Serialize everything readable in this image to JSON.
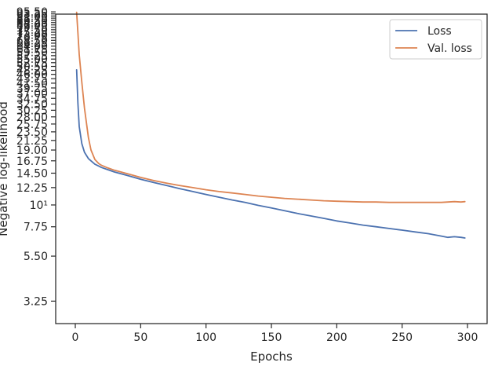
{
  "chart_data": {
    "type": "line",
    "xlabel": "Epochs",
    "ylabel": "Negative log-likelihood",
    "yscale": "log",
    "xlim": [
      -15,
      315
    ],
    "ylim": [
      2.5,
      93
    ],
    "grid": false,
    "legend_position": "top-right",
    "x_ticks": [
      0,
      50,
      100,
      150,
      200,
      250,
      300
    ],
    "y_tick_labels": [
      {
        "value": 3.25,
        "label": "3.25"
      },
      {
        "value": 5.5,
        "label": "5.50"
      },
      {
        "value": 7.75,
        "label": "7.75"
      },
      {
        "value": 10,
        "label": "10¹"
      },
      {
        "value": 12.25,
        "label": "12.25"
      },
      {
        "value": 14.5,
        "label": "14.50"
      },
      {
        "value": 16.75,
        "label": "16.75"
      },
      {
        "value": 19.0,
        "label": "19.00"
      },
      {
        "value": 21.25,
        "label": "21.25"
      },
      {
        "value": 23.5,
        "label": "23.50"
      },
      {
        "value": 25.75,
        "label": "25.75"
      },
      {
        "value": 28.0,
        "label": "28.00"
      },
      {
        "value": 30.25,
        "label": "30.25"
      },
      {
        "value": 32.5,
        "label": "32.50"
      },
      {
        "value": 34.75,
        "label": "34.75"
      },
      {
        "value": 37.0,
        "label": "37.00"
      },
      {
        "value": 39.25,
        "label": "39.25"
      },
      {
        "value": 41.5,
        "label": "41.50"
      },
      {
        "value": 43.75,
        "label": "43.75"
      },
      {
        "value": 46.0,
        "label": "46.00"
      },
      {
        "value": 48.25,
        "label": "48.25"
      },
      {
        "value": 50.5,
        "label": "50.50"
      },
      {
        "value": 52.75,
        "label": "52.75"
      },
      {
        "value": 55.0,
        "label": "55.00"
      },
      {
        "value": 57.25,
        "label": "57.25"
      },
      {
        "value": 59.5,
        "label": "59.50"
      },
      {
        "value": 61.75,
        "label": "61.75"
      },
      {
        "value": 64.0,
        "label": "64.00"
      },
      {
        "value": 66.25,
        "label": "66.25"
      },
      {
        "value": 68.5,
        "label": "68.50"
      },
      {
        "value": 70.75,
        "label": "70.75"
      },
      {
        "value": 73.0,
        "label": "73.00"
      },
      {
        "value": 75.25,
        "label": "75.25"
      },
      {
        "value": 77.5,
        "label": "77.50"
      },
      {
        "value": 79.75,
        "label": "79.75"
      },
      {
        "value": 82.0,
        "label": "82.00"
      },
      {
        "value": 84.25,
        "label": "84.25"
      },
      {
        "value": 86.5,
        "label": "86.50"
      },
      {
        "value": 88.75,
        "label": "88.75"
      },
      {
        "value": 91.0,
        "label": "91.00"
      },
      {
        "value": 93.25,
        "label": "93.25"
      },
      {
        "value": 95.5,
        "label": "95.50"
      }
    ],
    "series": [
      {
        "name": "Loss",
        "color": "#4c72b0",
        "x": [
          1,
          2,
          3,
          5,
          7,
          10,
          15,
          20,
          25,
          30,
          40,
          50,
          60,
          70,
          80,
          90,
          100,
          110,
          120,
          130,
          140,
          150,
          160,
          170,
          180,
          190,
          200,
          210,
          220,
          230,
          240,
          250,
          260,
          270,
          280,
          285,
          290,
          295,
          298
        ],
        "y": [
          48.5,
          33,
          25,
          20.5,
          18.5,
          17.2,
          16.1,
          15.5,
          15.1,
          14.7,
          14.1,
          13.5,
          13.0,
          12.55,
          12.1,
          11.7,
          11.3,
          10.95,
          10.6,
          10.3,
          9.95,
          9.65,
          9.35,
          9.05,
          8.8,
          8.55,
          8.3,
          8.1,
          7.9,
          7.75,
          7.6,
          7.45,
          7.3,
          7.15,
          6.95,
          6.85,
          6.9,
          6.85,
          6.8
        ]
      },
      {
        "name": "Val. loss",
        "color": "#dd8452",
        "x": [
          1,
          2,
          3,
          5,
          7,
          10,
          12,
          15,
          18,
          20,
          25,
          30,
          40,
          50,
          60,
          70,
          80,
          90,
          100,
          110,
          120,
          130,
          140,
          150,
          160,
          170,
          180,
          190,
          200,
          210,
          220,
          230,
          240,
          250,
          260,
          270,
          280,
          285,
          290,
          295,
          298
        ],
        "y": [
          95,
          75,
          58,
          42,
          31,
          22,
          19,
          17,
          16.2,
          15.9,
          15.4,
          15.0,
          14.4,
          13.8,
          13.3,
          12.9,
          12.55,
          12.25,
          11.95,
          11.7,
          11.5,
          11.3,
          11.1,
          10.95,
          10.8,
          10.7,
          10.6,
          10.5,
          10.45,
          10.4,
          10.35,
          10.35,
          10.3,
          10.3,
          10.3,
          10.3,
          10.3,
          10.35,
          10.4,
          10.35,
          10.4
        ]
      }
    ]
  }
}
